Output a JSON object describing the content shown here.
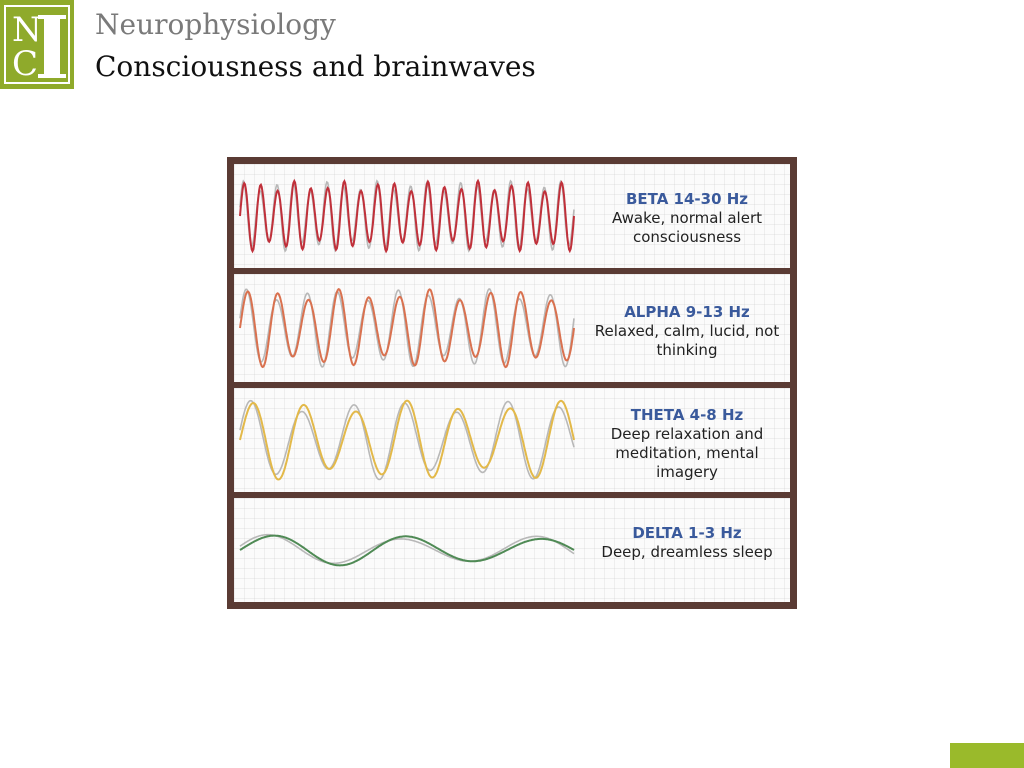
{
  "header": {
    "logo_letters": "NIC",
    "subject": "Neurophysiology",
    "title": "Consciousness and brainwaves"
  },
  "colors": {
    "logo_green": "#8faa2b",
    "tab_green": "#9aba2b",
    "figure_frame": "#5a3b34",
    "label_blue": "#3a5a9c"
  },
  "figure": {
    "waves": [
      {
        "name": "BETA 14-30 Hz",
        "description": "Awake, normal alert consciousness",
        "color": "#c0303a",
        "cycles": 20,
        "amplitude": 0.8
      },
      {
        "name": "ALPHA 9-13 Hz",
        "description": "Relaxed, calm, lucid, not thinking",
        "color": "#d9714f",
        "cycles": 11,
        "amplitude": 0.85
      },
      {
        "name": "THETA 4-8 Hz",
        "description": "Deep relaxation and meditation, mental imagery",
        "color": "#e3b949",
        "cycles": 6.5,
        "amplitude": 0.9
      },
      {
        "name": "DELTA 1-3 Hz",
        "description": "Deep, dreamless sleep",
        "color": "#4f8a55",
        "cycles": 2.5,
        "amplitude": 0.35
      }
    ]
  }
}
